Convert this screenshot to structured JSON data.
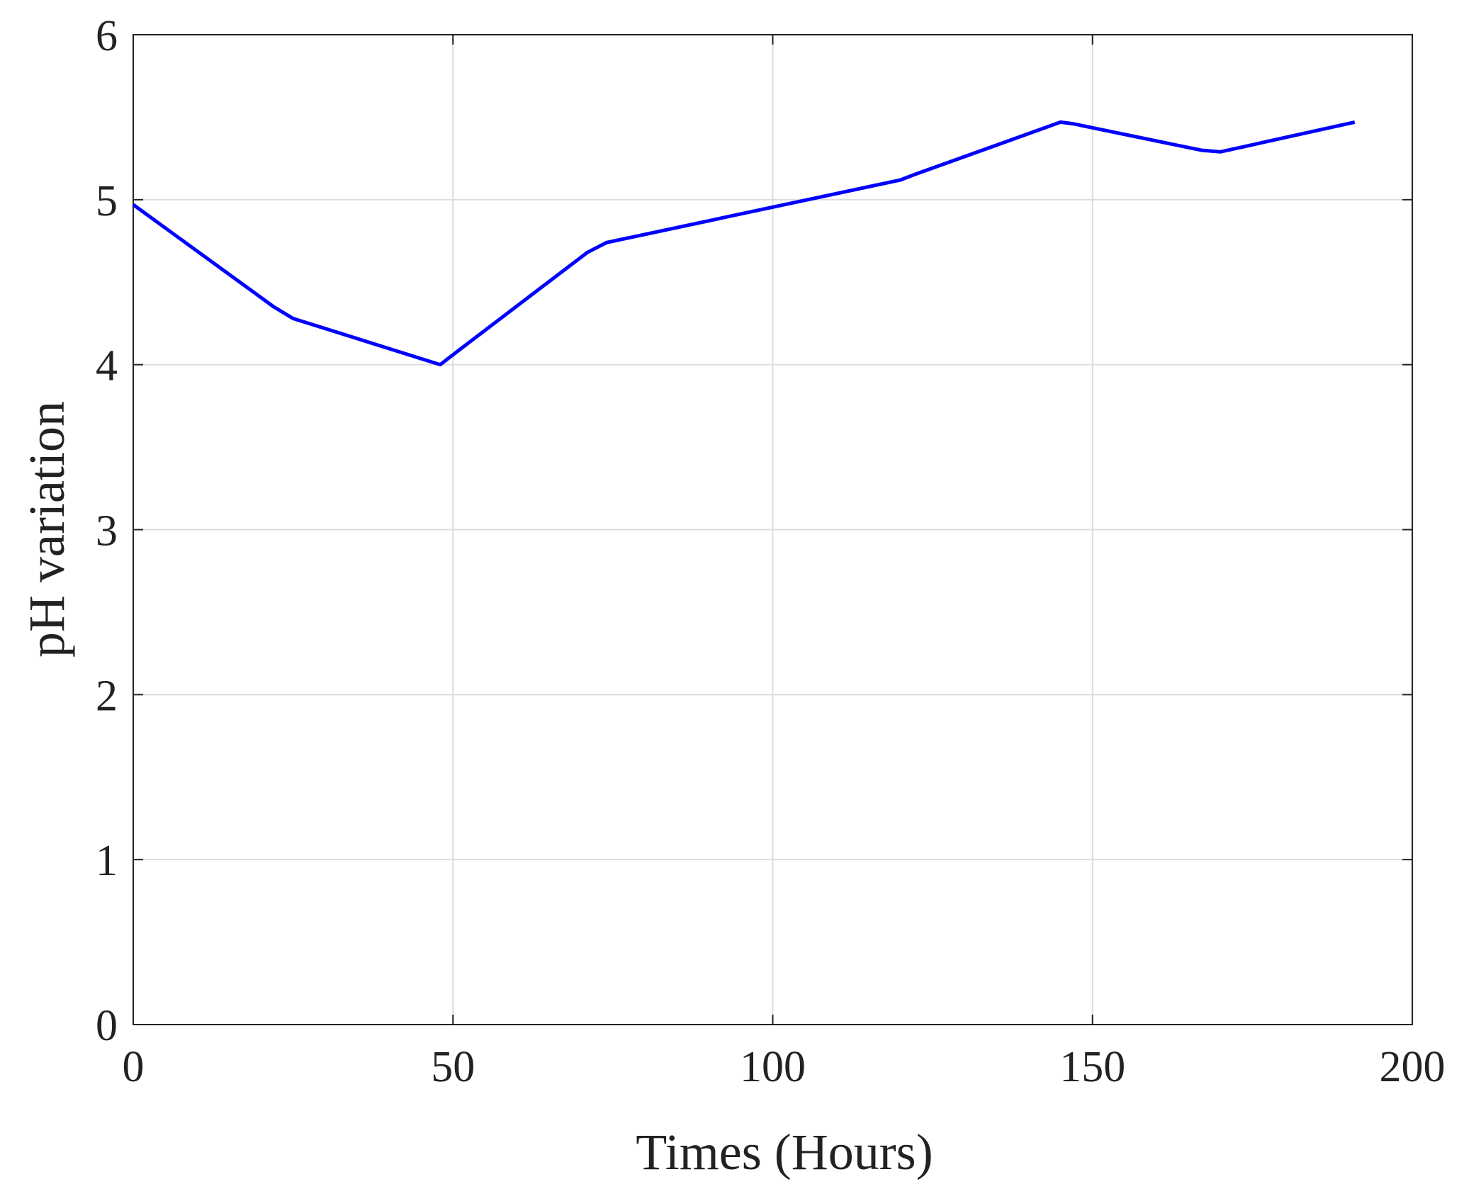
{
  "chart_data": {
    "type": "line",
    "xlabel": "Times (Hours)",
    "ylabel": "pH variation",
    "x": [
      0,
      22,
      25,
      48,
      51,
      71,
      74,
      120,
      122,
      145,
      147,
      167,
      170,
      191
    ],
    "series": [
      {
        "color": "#0000ff",
        "values": [
          4.97,
          4.35,
          4.28,
          4.0,
          4.09,
          4.68,
          4.74,
          5.12,
          5.15,
          5.47,
          5.46,
          5.3,
          5.29,
          5.47
        ]
      }
    ],
    "xlim": [
      0,
      200
    ],
    "xticks": [
      0,
      50,
      100,
      150,
      200
    ],
    "ylim": [
      0,
      6
    ],
    "yticks": [
      0,
      1,
      2,
      3,
      4,
      5,
      6
    ],
    "grid": true
  }
}
